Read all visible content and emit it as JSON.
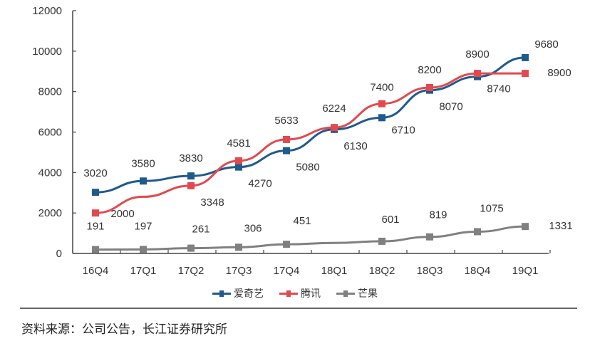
{
  "chart_data": {
    "type": "line",
    "title": "",
    "xlabel": "",
    "ylabel": "",
    "categories": [
      "16Q4",
      "17Q1",
      "17Q2",
      "17Q3",
      "17Q4",
      "18Q1",
      "18Q2",
      "18Q3",
      "18Q4",
      "19Q1"
    ],
    "yticks": [
      "0",
      "2000",
      "4000",
      "6000",
      "8000",
      "10000",
      "12000"
    ],
    "ylim": [
      0,
      12000
    ],
    "grid": false,
    "legend_position": "bottom",
    "series": [
      {
        "name": "爱奇艺",
        "color": "#1f5a8c",
        "values": [
          3020,
          3580,
          3830,
          4270,
          5080,
          6130,
          6710,
          8070,
          8740,
          9680
        ]
      },
      {
        "name": "腾讯",
        "color": "#e04a4f",
        "values": [
          2000,
          2800,
          3348,
          4581,
          5633,
          6224,
          7400,
          8200,
          8900,
          8900
        ]
      },
      {
        "name": "芒果",
        "color": "#808080",
        "values": [
          191,
          197,
          261,
          306,
          451,
          520,
          601,
          819,
          1075,
          1331
        ]
      }
    ],
    "labeled_values": {
      "爱奇艺": [
        "3020",
        "3580",
        "3830",
        "4270",
        "5080",
        "6130",
        "6710",
        "8070",
        "8740",
        "9680"
      ],
      "腾讯": [
        "2000",
        "",
        "3348",
        "4581",
        "5633",
        "6224",
        "7400",
        "8200",
        "8900",
        "8900"
      ],
      "芒果": [
        "191",
        "197",
        "261",
        "306",
        "451",
        "",
        "601",
        "819",
        "1075",
        "1331"
      ]
    }
  },
  "legend": {
    "items": [
      {
        "label": "爱奇艺",
        "color": "#1f5a8c"
      },
      {
        "label": "腾讯",
        "color": "#e04a4f"
      },
      {
        "label": "芒果",
        "color": "#808080"
      }
    ]
  },
  "footer": {
    "source": "资料来源：公司公告，长江证券研究所"
  }
}
